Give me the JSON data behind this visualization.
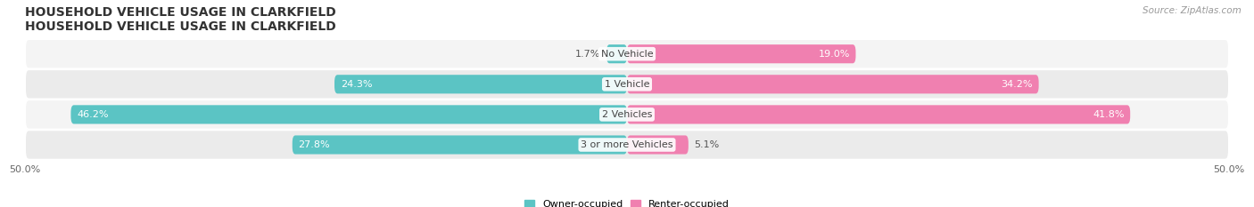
{
  "title": "HOUSEHOLD VEHICLE USAGE IN CLARKFIELD",
  "source": "Source: ZipAtlas.com",
  "categories": [
    "No Vehicle",
    "1 Vehicle",
    "2 Vehicles",
    "3 or more Vehicles"
  ],
  "owner_values": [
    1.7,
    24.3,
    46.2,
    27.8
  ],
  "renter_values": [
    19.0,
    34.2,
    41.8,
    5.1
  ],
  "owner_color": "#5BC4C4",
  "renter_color": "#F080B0",
  "owner_color_light": "#A8DFDF",
  "renter_color_light": "#F8C0D8",
  "row_bg_even": "#F5F5F5",
  "row_bg_odd": "#EEEEEE",
  "x_min": -50.0,
  "x_max": 50.0,
  "bar_height": 0.62,
  "legend_labels": [
    "Owner-occupied",
    "Renter-occupied"
  ],
  "title_fontsize": 10,
  "label_fontsize": 8,
  "source_fontsize": 7.5,
  "value_label_fontsize": 8,
  "value_white_threshold_owner": 10.0,
  "value_white_threshold_renter": 10.0
}
